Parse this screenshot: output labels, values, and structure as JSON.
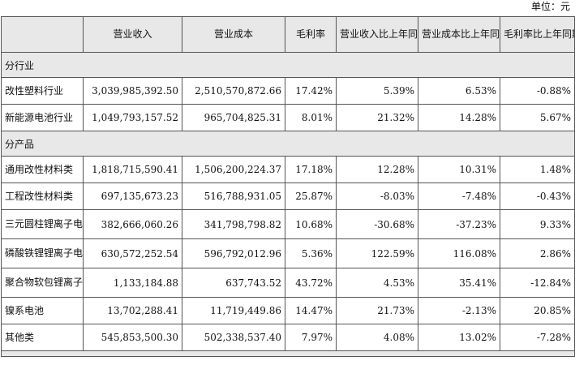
{
  "unit_label": "单位：元",
  "headers": [
    "",
    "营业收入",
    "营业成本",
    "毛利率",
    "营业收入比上年同期增减",
    "营业成本比上年同期增减",
    "毛利率比上年同期增减"
  ],
  "sections": [
    {
      "title": "分行业",
      "rows": [
        {
          "name": "改性塑料行业",
          "revenue": "3,039,985,392.50",
          "cost": "2,510,570,872.66",
          "margin": "17.42%",
          "rev_chg": "5.39%",
          "cost_chg": "6.53%",
          "margin_chg": "-0.88%"
        },
        {
          "name": "新能源电池行业",
          "revenue": "1,049,793,157.52",
          "cost": "965,704,825.31",
          "margin": "8.01%",
          "rev_chg": "21.32%",
          "cost_chg": "14.28%",
          "margin_chg": "5.67%"
        }
      ]
    },
    {
      "title": "分产品",
      "rows": [
        {
          "name": "通用改性材料类",
          "revenue": "1,818,715,590.41",
          "cost": "1,506,200,224.37",
          "margin": "17.18%",
          "rev_chg": "12.28%",
          "cost_chg": "10.31%",
          "margin_chg": "1.48%"
        },
        {
          "name": "工程改性材料类",
          "revenue": "697,135,673.23",
          "cost": "516,788,931.05",
          "margin": "25.87%",
          "rev_chg": "-8.03%",
          "cost_chg": "-7.48%",
          "margin_chg": "-0.43%"
        },
        {
          "name": "三元圆柱锂离子电池",
          "revenue": "382,666,060.26",
          "cost": "341,798,798.82",
          "margin": "10.68%",
          "rev_chg": "-30.68%",
          "cost_chg": "-37.23%",
          "margin_chg": "9.33%"
        },
        {
          "name": "磷酸铁锂锂离子电池",
          "revenue": "630,572,252.54",
          "cost": "596,792,012.96",
          "margin": "5.36%",
          "rev_chg": "122.59%",
          "cost_chg": "116.08%",
          "margin_chg": "2.86%"
        },
        {
          "name": "聚合物软包锂离子电池",
          "revenue": "1,133,184.88",
          "cost": "637,743.52",
          "margin": "43.72%",
          "rev_chg": "4.53%",
          "cost_chg": "35.41%",
          "margin_chg": "-12.84%"
        },
        {
          "name": "镍系电池",
          "revenue": "13,702,288.41",
          "cost": "11,719,449.86",
          "margin": "14.47%",
          "rev_chg": "21.73%",
          "cost_chg": "-2.13%",
          "margin_chg": "20.85%"
        },
        {
          "name": "其他类",
          "revenue": "545,853,500.30",
          "cost": "502,338,537.40",
          "margin": "7.97%",
          "rev_chg": "4.08%",
          "cost_chg": "13.02%",
          "margin_chg": "-7.28%"
        }
      ]
    }
  ]
}
